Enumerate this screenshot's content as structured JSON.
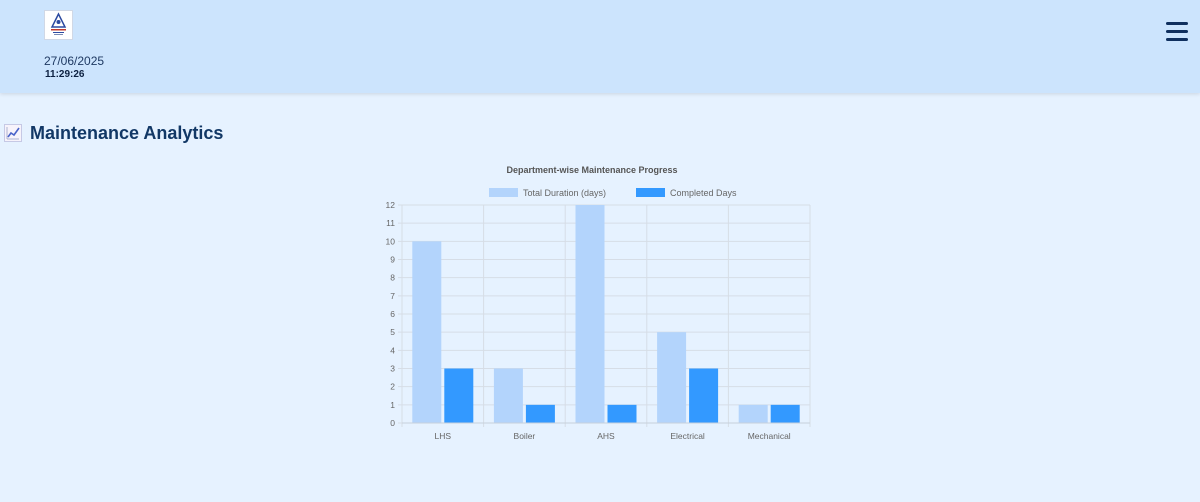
{
  "header": {
    "date": "27/06/2025",
    "time": "11:29:26",
    "logo_icon": "organization-logo",
    "menu_icon": "hamburger-menu-icon"
  },
  "page": {
    "title": "Maintenance Analytics",
    "title_icon": "chart-increasing-icon"
  },
  "colors": {
    "header_bg": "#cce4fd",
    "page_bg": "#e6f2ff",
    "title": "#123866",
    "series_total": "#b3d4fc",
    "series_completed": "#3399ff"
  },
  "chart_data": {
    "type": "bar",
    "title": "Department-wise Maintenance Progress",
    "categories": [
      "LHS",
      "Boiler",
      "AHS",
      "Electrical",
      "Mechanical"
    ],
    "series": [
      {
        "name": "Total Duration (days)",
        "values": [
          10,
          3,
          12,
          5,
          1
        ],
        "color": "#b3d4fc"
      },
      {
        "name": "Completed Days",
        "values": [
          3,
          1,
          1,
          3,
          1
        ],
        "color": "#3399ff"
      }
    ],
    "ylim": [
      0,
      12
    ],
    "yticks": [
      0,
      1,
      2,
      3,
      4,
      5,
      6,
      7,
      8,
      9,
      10,
      11,
      12
    ],
    "grid": true,
    "legend": "top"
  }
}
